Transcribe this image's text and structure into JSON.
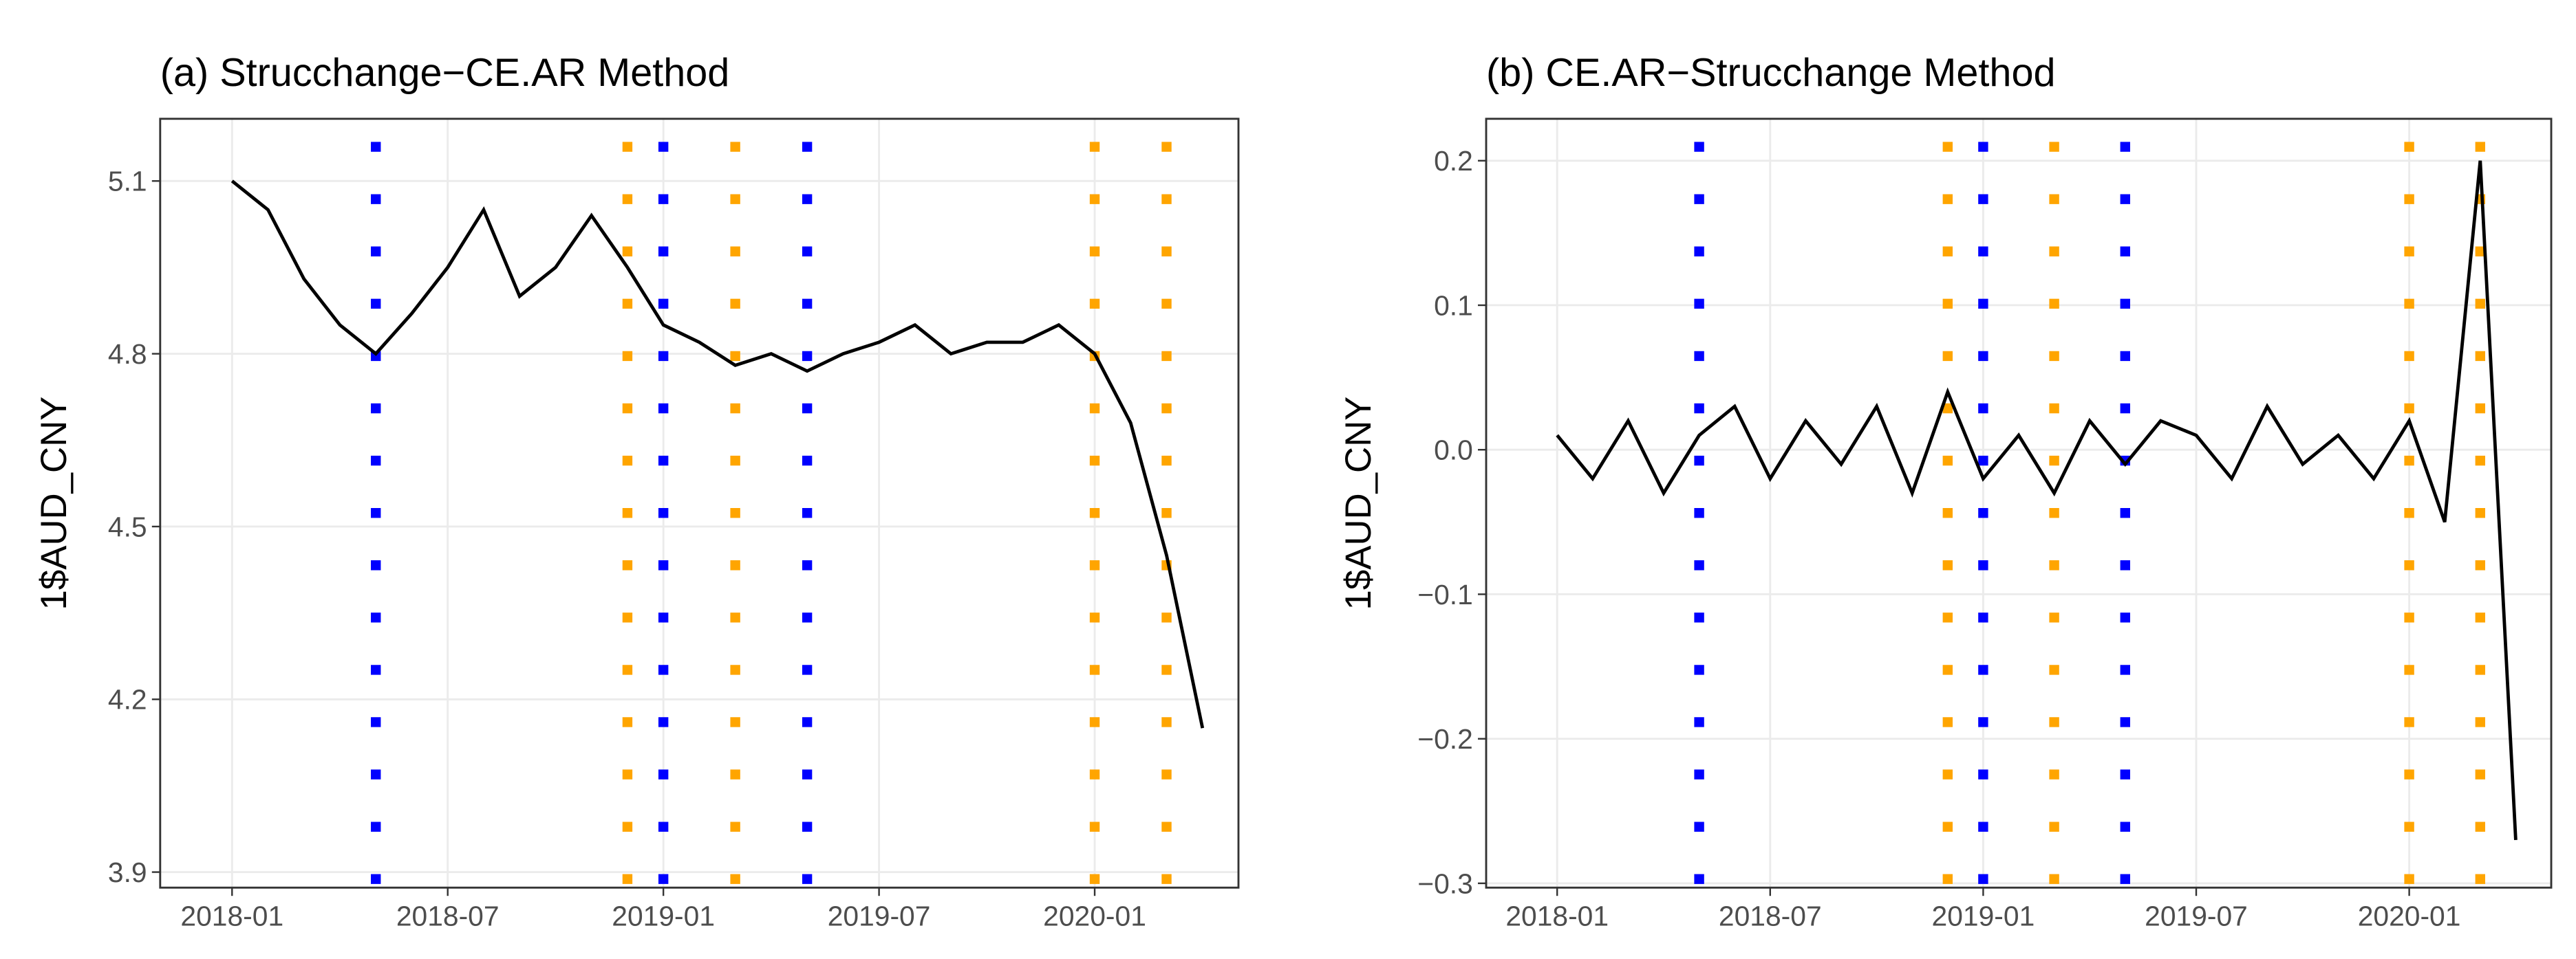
{
  "chart_data": [
    {
      "type": "line",
      "title": "(a) Strucchange−CE.AR Method",
      "ylabel": "1$AUD_CNY",
      "color": "#000000",
      "x": [
        "2018-01",
        "2018-02",
        "2018-03",
        "2018-04",
        "2018-05",
        "2018-06",
        "2018-07",
        "2018-08",
        "2018-09",
        "2018-10",
        "2018-11",
        "2018-12",
        "2019-01",
        "2019-02",
        "2019-03",
        "2019-04",
        "2019-05",
        "2019-06",
        "2019-07",
        "2019-08",
        "2019-09",
        "2019-10",
        "2019-11",
        "2019-12",
        "2020-01",
        "2020-02",
        "2020-03",
        "2020-04"
      ],
      "values": [
        5.1,
        5.05,
        4.93,
        4.85,
        4.8,
        4.87,
        4.95,
        5.05,
        4.9,
        4.95,
        5.04,
        4.95,
        4.85,
        4.82,
        4.78,
        4.8,
        4.77,
        4.8,
        4.82,
        4.85,
        4.8,
        4.82,
        4.82,
        4.85,
        4.8,
        4.68,
        4.45,
        4.15
      ],
      "xlim": [
        "2017-11",
        "2020-05"
      ],
      "xticks": [
        "2018-01",
        "2018-07",
        "2019-01",
        "2019-07",
        "2020-01"
      ],
      "ylim": [
        3.873,
        5.208
      ],
      "yticks": [
        3.9,
        4.2,
        4.5,
        4.8,
        5.1
      ],
      "grid": true,
      "breaks": [
        {
          "color": "#0000ff",
          "x": [
            "2018-05",
            "2019-01",
            "2019-05"
          ]
        },
        {
          "color": "#ffa500",
          "x": [
            "2018-12",
            "2019-03",
            "2020-01",
            "2020-03"
          ]
        }
      ]
    },
    {
      "type": "line",
      "title": "(b) CE.AR−Strucchange Method",
      "ylabel": "1$AUD_CNY",
      "color": "#000000",
      "x": [
        "2018-01",
        "2018-02",
        "2018-03",
        "2018-04",
        "2018-05",
        "2018-06",
        "2018-07",
        "2018-08",
        "2018-09",
        "2018-10",
        "2018-11",
        "2018-12",
        "2019-01",
        "2019-02",
        "2019-03",
        "2019-04",
        "2019-05",
        "2019-06",
        "2019-07",
        "2019-08",
        "2019-09",
        "2019-10",
        "2019-11",
        "2019-12",
        "2020-01",
        "2020-02",
        "2020-03",
        "2020-04"
      ],
      "values": [
        0.01,
        -0.02,
        0.02,
        -0.03,
        0.01,
        0.03,
        -0.02,
        0.02,
        -0.01,
        0.03,
        -0.03,
        0.04,
        -0.02,
        0.01,
        -0.03,
        0.02,
        -0.01,
        0.02,
        0.01,
        -0.02,
        0.03,
        -0.01,
        0.01,
        -0.02,
        0.02,
        -0.05,
        0.2,
        -0.27
      ],
      "xlim": [
        "2017-11",
        "2020-05"
      ],
      "xticks": [
        "2018-01",
        "2018-07",
        "2019-01",
        "2019-07",
        "2020-01"
      ],
      "ylim": [
        -0.303,
        0.229
      ],
      "yticks": [
        {
          "value": -0.3,
          "label": "−0.3"
        },
        {
          "value": -0.2,
          "label": "−0.2"
        },
        {
          "value": -0.1,
          "label": "−0.1"
        },
        {
          "value": 0,
          "label": "0.0"
        },
        0.1,
        0.2
      ],
      "grid": true,
      "breaks": [
        {
          "color": "#0000ff",
          "x": [
            "2018-05",
            "2019-01",
            "2019-05"
          ]
        },
        {
          "color": "#ffa500",
          "x": [
            "2018-12",
            "2019-03",
            "2020-01",
            "2020-03"
          ]
        }
      ]
    }
  ]
}
